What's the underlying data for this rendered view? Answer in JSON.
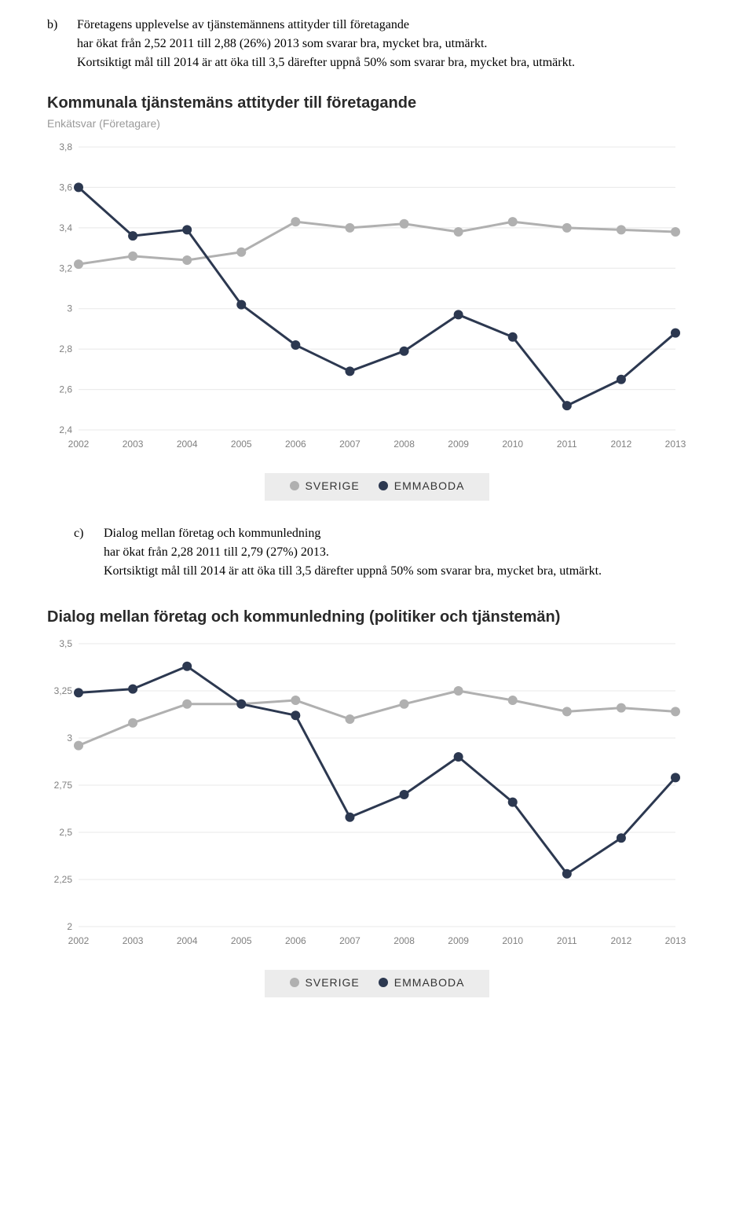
{
  "section_b": {
    "marker": "b)",
    "line1": "Företagens upplevelse av tjänstemännens attityder till företagande",
    "line2": "har ökat från 2,52 2011 till 2,88 (26%) 2013 som svarar bra, mycket bra, utmärkt.",
    "line3": "Kortsiktigt mål till 2014 är att öka till 3,5 därefter uppnå 50% som svarar bra, mycket bra, utmärkt."
  },
  "chart1": {
    "type": "line",
    "title": "Kommunala tjänstemäns attityder till företagande",
    "subtitle": "Enkätsvar (Företagare)",
    "years": [
      "2002",
      "2003",
      "2004",
      "2005",
      "2006",
      "2007",
      "2008",
      "2009",
      "2010",
      "2011",
      "2012",
      "2013"
    ],
    "ylim": [
      2.4,
      3.8
    ],
    "ytick_step": 0.2,
    "yticks": [
      "2,4",
      "2,6",
      "2,8",
      "3",
      "3,2",
      "3,4",
      "3,6",
      "3,8"
    ],
    "grid_color": "#e8e8e8",
    "background_color": "#ffffff",
    "axis_label_color": "#808080",
    "series": [
      {
        "name": "SVERIGE",
        "color": "#b0b0b0",
        "marker_size": 6,
        "line_width": 3,
        "values": [
          3.22,
          3.26,
          3.24,
          3.28,
          3.43,
          3.4,
          3.42,
          3.38,
          3.43,
          3.4,
          3.39,
          3.38
        ]
      },
      {
        "name": "EMMABODA",
        "color": "#2c3850",
        "marker_size": 6,
        "line_width": 3,
        "values": [
          3.6,
          3.36,
          3.39,
          3.02,
          2.82,
          2.69,
          2.79,
          2.97,
          2.86,
          2.52,
          2.65,
          2.88
        ]
      }
    ]
  },
  "section_c": {
    "marker": "c)",
    "line1": "Dialog mellan företag och kommunledning",
    "line2": "har ökat från 2,28 2011 till 2,79 (27%) 2013.",
    "line3": "Kortsiktigt mål till 2014 är att öka till 3,5 därefter uppnå 50% som svarar bra, mycket bra, utmärkt."
  },
  "chart2": {
    "type": "line",
    "title": "Dialog mellan företag och kommunledning (politiker och tjänstemän)",
    "years": [
      "2002",
      "2003",
      "2004",
      "2005",
      "2006",
      "2007",
      "2008",
      "2009",
      "2010",
      "2011",
      "2012",
      "2013"
    ],
    "ylim": [
      2.0,
      3.5
    ],
    "ytick_step": 0.25,
    "yticks": [
      "2",
      "2,25",
      "2,5",
      "2,75",
      "3",
      "3,25",
      "3,5"
    ],
    "grid_color": "#e8e8e8",
    "background_color": "#ffffff",
    "axis_label_color": "#808080",
    "series": [
      {
        "name": "SVERIGE",
        "color": "#b0b0b0",
        "marker_size": 6,
        "line_width": 3,
        "values": [
          2.96,
          3.08,
          3.18,
          3.18,
          3.2,
          3.1,
          3.18,
          3.25,
          3.2,
          3.14,
          3.16,
          3.14
        ]
      },
      {
        "name": "EMMABODA",
        "color": "#2c3850",
        "marker_size": 6,
        "line_width": 3,
        "values": [
          3.24,
          3.26,
          3.38,
          3.18,
          3.12,
          2.58,
          2.7,
          2.9,
          2.66,
          2.28,
          2.47,
          2.79
        ]
      }
    ]
  },
  "legend": {
    "bg": "#ececec",
    "items": [
      {
        "label": "SVERIGE",
        "color": "#b0b0b0"
      },
      {
        "label": "EMMABODA",
        "color": "#2c3850"
      }
    ]
  }
}
